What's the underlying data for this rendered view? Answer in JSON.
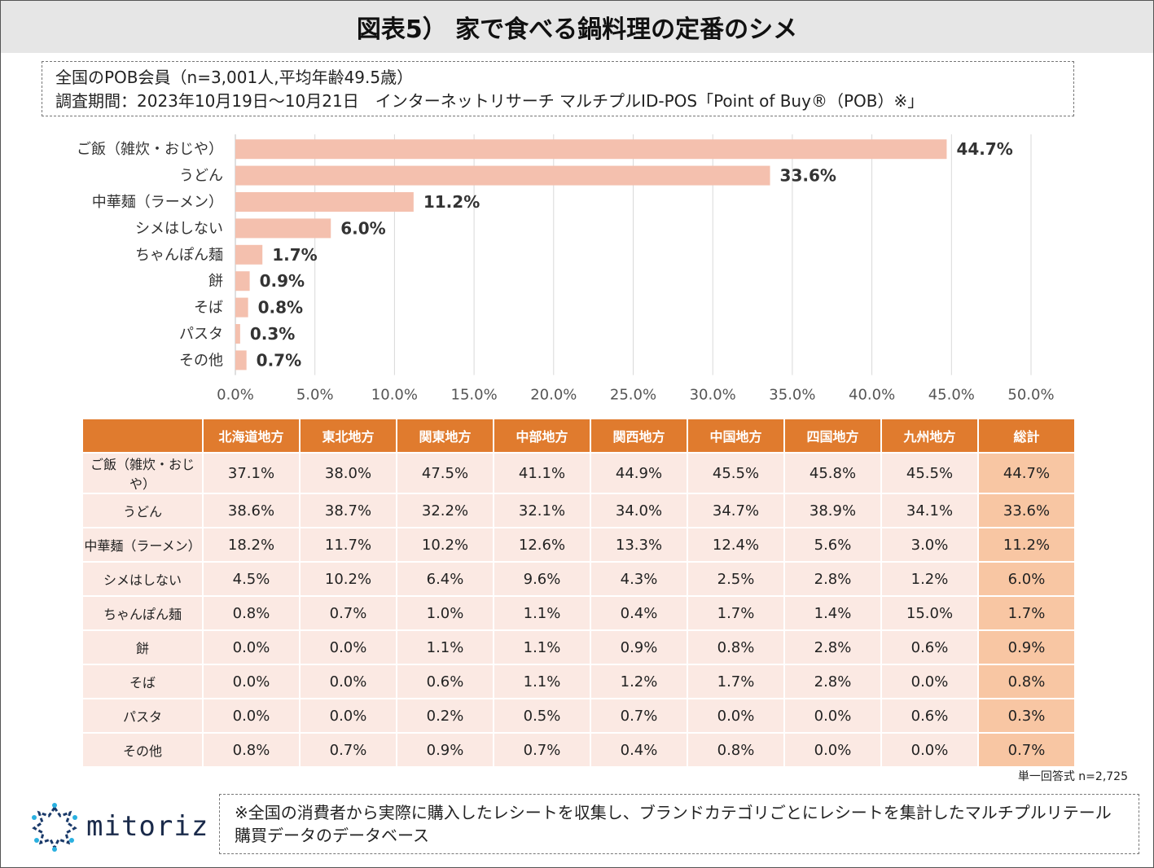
{
  "title": "図表5） 家で食べる鍋料理の定番のシメ",
  "info": {
    "line1": "全国のPOB会員（n=3,001人,平均年齢49.5歳）",
    "line2": "調査期間：2023年10月19日〜10月21日　インターネットリサーチ マルチプルID-POS「Point of Buy®（POB）※」"
  },
  "colors": {
    "bar": "#f4c0ae",
    "header": "#e07b2e",
    "cell": "#fbe9e3",
    "total_cell": "#f8c6a3"
  },
  "chart_data": {
    "type": "bar",
    "orientation": "horizontal",
    "categories": [
      "ご飯（雑炊・おじや）",
      "うどん",
      "中華麺（ラーメン）",
      "シメはしない",
      "ちゃんぽん麺",
      "餅",
      "そば",
      "パスタ",
      "その他"
    ],
    "values": [
      44.7,
      33.6,
      11.2,
      6.0,
      1.7,
      0.9,
      0.8,
      0.3,
      0.7
    ],
    "value_labels": [
      "44.7%",
      "33.6%",
      "11.2%",
      "6.0%",
      "1.7%",
      "0.9%",
      "0.8%",
      "0.3%",
      "0.7%"
    ],
    "xlim": [
      0,
      50
    ],
    "xticks": [
      "0.0%",
      "5.0%",
      "10.0%",
      "15.0%",
      "20.0%",
      "25.0%",
      "30.0%",
      "35.0%",
      "40.0%",
      "45.0%",
      "50.0%"
    ],
    "grid": true
  },
  "table": {
    "columns": [
      "",
      "北海道地方",
      "東北地方",
      "関東地方",
      "中部地方",
      "関西地方",
      "中国地方",
      "四国地方",
      "九州地方",
      "総計"
    ],
    "rows": [
      [
        "ご飯（雑炊・おじや）",
        "37.1%",
        "38.0%",
        "47.5%",
        "41.1%",
        "44.9%",
        "45.5%",
        "45.8%",
        "45.5%",
        "44.7%"
      ],
      [
        "うどん",
        "38.6%",
        "38.7%",
        "32.2%",
        "32.1%",
        "34.0%",
        "34.7%",
        "38.9%",
        "34.1%",
        "33.6%"
      ],
      [
        "中華麺（ラーメン）",
        "18.2%",
        "11.7%",
        "10.2%",
        "12.6%",
        "13.3%",
        "12.4%",
        "5.6%",
        "3.0%",
        "11.2%"
      ],
      [
        "シメはしない",
        "4.5%",
        "10.2%",
        "6.4%",
        "9.6%",
        "4.3%",
        "2.5%",
        "2.8%",
        "1.2%",
        "6.0%"
      ],
      [
        "ちゃんぽん麺",
        "0.8%",
        "0.7%",
        "1.0%",
        "1.1%",
        "0.4%",
        "1.7%",
        "1.4%",
        "15.0%",
        "1.7%"
      ],
      [
        "餅",
        "0.0%",
        "0.0%",
        "1.1%",
        "1.1%",
        "0.9%",
        "0.8%",
        "2.8%",
        "0.6%",
        "0.9%"
      ],
      [
        "そば",
        "0.0%",
        "0.0%",
        "0.6%",
        "1.1%",
        "1.2%",
        "1.7%",
        "2.8%",
        "0.0%",
        "0.8%"
      ],
      [
        "パスタ",
        "0.0%",
        "0.0%",
        "0.2%",
        "0.5%",
        "0.7%",
        "0.0%",
        "0.0%",
        "0.6%",
        "0.3%"
      ],
      [
        "その他",
        "0.8%",
        "0.7%",
        "0.9%",
        "0.7%",
        "0.4%",
        "0.8%",
        "0.0%",
        "0.0%",
        "0.7%"
      ]
    ]
  },
  "sample_note": "単一回答式 n=2,725",
  "logo_text": "mitoriz",
  "footnote": "※全国の消費者から実際に購入したレシートを収集し、ブランドカテゴリごとにレシートを集計したマルチプルリテール購買データのデータベース"
}
